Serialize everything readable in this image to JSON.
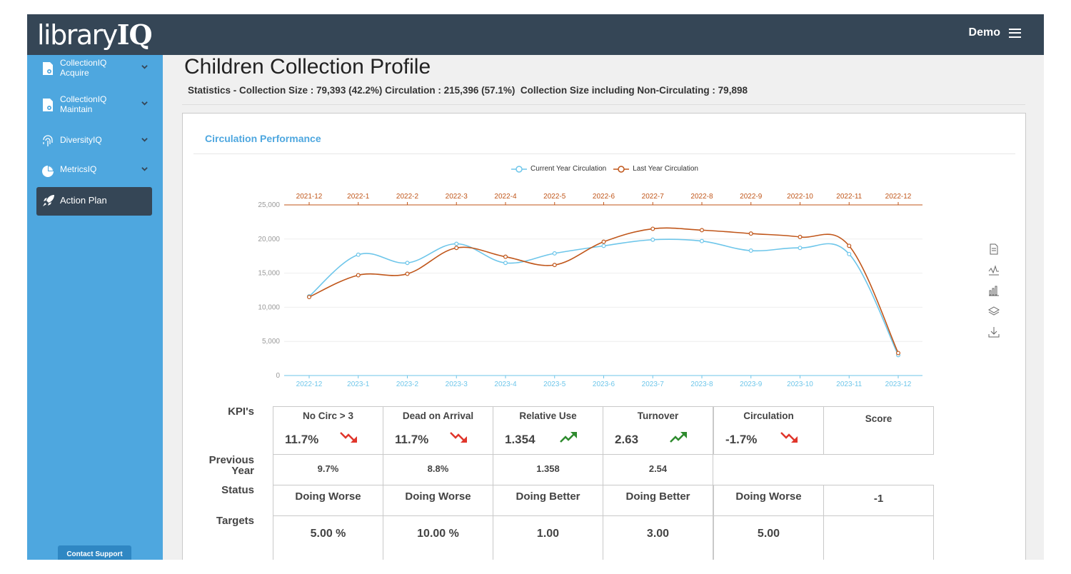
{
  "header": {
    "logo_plain": "library",
    "logo_bold": "IQ",
    "user": "Demo"
  },
  "sidebar": {
    "items": [
      {
        "line1": "CollectionIQ",
        "line2": "Acquire"
      },
      {
        "line1": "CollectionIQ",
        "line2": "Maintain"
      },
      {
        "line1": "DiversityIQ",
        "line2": ""
      },
      {
        "line1": "MetricsIQ",
        "line2": ""
      }
    ],
    "action_plan": "Action Plan",
    "contact_support": "Contact Support"
  },
  "page": {
    "title": "Children Collection Profile",
    "stats": "Statistics - Collection Size : 79,393 (42.2%) Circulation : 215,396 (57.1%)  Collection Size including Non-Circulating : 79,898"
  },
  "card": {
    "title": "Circulation Performance"
  },
  "chart_data": {
    "type": "line",
    "x_bottom": [
      "2022-12",
      "2023-1",
      "2023-2",
      "2023-3",
      "2023-4",
      "2023-5",
      "2023-6",
      "2023-7",
      "2023-8",
      "2023-9",
      "2023-10",
      "2023-11",
      "2023-12"
    ],
    "x_top": [
      "2021-12",
      "2022-1",
      "2022-2",
      "2022-3",
      "2022-4",
      "2022-5",
      "2022-6",
      "2022-7",
      "2022-8",
      "2022-9",
      "2022-10",
      "2022-11",
      "2022-12"
    ],
    "yticks": [
      "0",
      "5,000",
      "10,000",
      "15,000",
      "20,000",
      "25,000"
    ],
    "ylim": [
      0,
      25000
    ],
    "legend_position": "top-center",
    "series": [
      {
        "name": "Current Year Circulation",
        "color": "#6ec6ea",
        "values": [
          11600,
          17700,
          16500,
          19300,
          16500,
          17900,
          19000,
          19900,
          19700,
          18300,
          18700,
          17800,
          3000
        ]
      },
      {
        "name": "Last Year Circulation",
        "color": "#c0561a",
        "values": [
          11500,
          14700,
          14900,
          18700,
          17400,
          16200,
          19600,
          21500,
          21300,
          20800,
          20300,
          19000,
          3300
        ]
      }
    ]
  },
  "kpis": {
    "labels": {
      "kpi": "KPI's",
      "previous": [
        "Previous",
        "Year"
      ],
      "status": "Status",
      "targets": "Targets"
    },
    "columns": [
      {
        "name": "No Circ > 3",
        "value": "11.7%",
        "trend": "down",
        "previous": "9.7%",
        "status": "Doing Worse",
        "target": "5.00 %"
      },
      {
        "name": "Dead on Arrival",
        "value": "11.7%",
        "trend": "down",
        "previous": "8.8%",
        "status": "Doing Worse",
        "target": "10.00 %"
      },
      {
        "name": "Relative Use",
        "value": "1.354",
        "trend": "up",
        "previous": "1.358",
        "status": "Doing Better",
        "target": "1.00"
      },
      {
        "name": "Turnover",
        "value": "2.63",
        "trend": "up",
        "previous": "2.54",
        "status": "Doing Better",
        "target": "3.00"
      },
      {
        "name": "Circulation",
        "value": "-1.7%",
        "trend": "down",
        "previous": "",
        "status": "Doing Worse",
        "target": "5.00"
      }
    ],
    "score": {
      "name": "Score",
      "value": "-1"
    },
    "colors": {
      "down": "#e0352b",
      "up": "#2e8b2e"
    }
  }
}
